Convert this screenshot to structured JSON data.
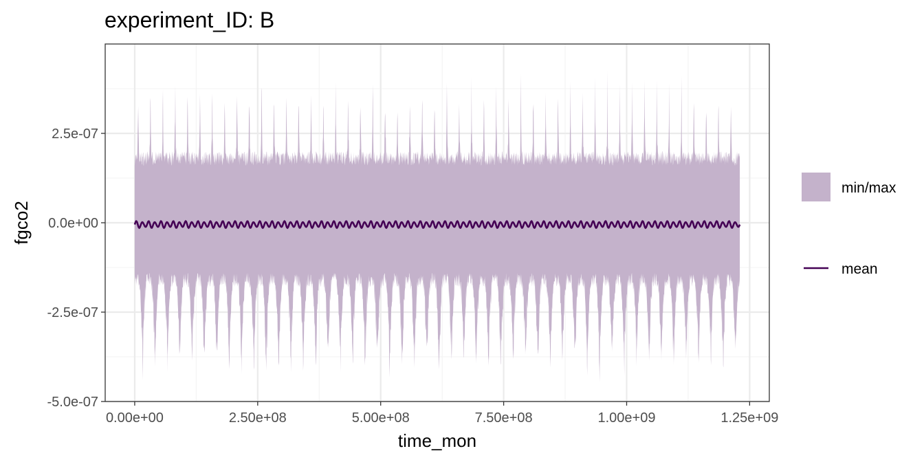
{
  "chart_data": {
    "type": "area",
    "title": "experiment_ID: B",
    "xlabel": "time_mon",
    "ylabel": "fgco2",
    "xlim": [
      -60000000,
      1290000000
    ],
    "ylim": [
      -5e-07,
      5e-07
    ],
    "x_ticks": [
      0,
      250000000,
      500000000,
      750000000,
      1000000000,
      1250000000
    ],
    "x_tick_labels": [
      "0.00e+00",
      "2.50e+08",
      "5.00e+08",
      "7.50e+08",
      "1.00e+09",
      "1.25e+09"
    ],
    "y_ticks": [
      -5e-07,
      -2.5e-07,
      0,
      2.5e-07
    ],
    "y_tick_labels": [
      "-5.0e-07",
      "-2.5e-07",
      "0.0e+00",
      "2.5e-07"
    ],
    "grid": true,
    "legend_position": "right",
    "x_start": 0,
    "x_end": 1230000000,
    "n_cycles": 49,
    "ribbon": {
      "name": "min/max",
      "color": "#c4b2cb",
      "typical_max": 1.8e-07,
      "typical_min": -1.6e-07,
      "seasonal_peak_max": 4.3e-07,
      "seasonal_peak_min": -4.4e-07
    },
    "mean_line": {
      "name": "mean",
      "color": "#440154",
      "amplitude": 1e-08,
      "center": -5e-09
    }
  }
}
